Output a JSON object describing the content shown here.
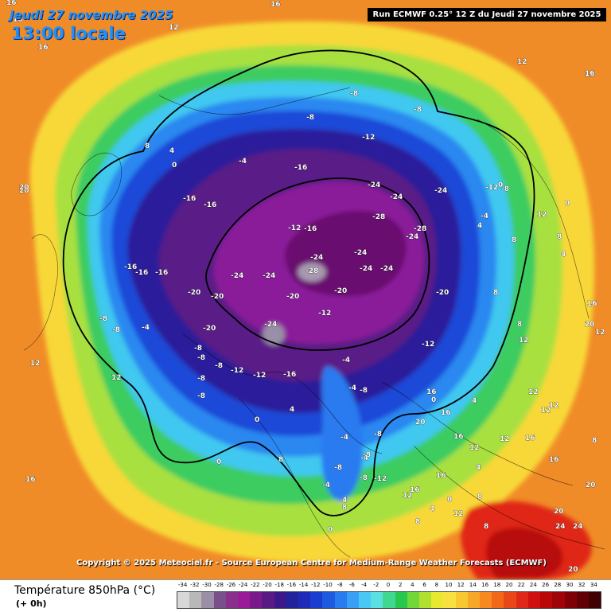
{
  "header": {
    "date_title": "Jeudi 27 novembre 2025",
    "time_title": "13:00 locale",
    "run_info": "Run ECMWF 0.25° 12 Z du Jeudi 27 novembre 2025"
  },
  "copyright": "Copyright © 2025 Meteociel.fr - Source European Centre for Medium-Range Weather Forecasts (ECMWF)",
  "legend": {
    "title": "Température 850hPa (°C)",
    "subtitle": "(+ 0h)",
    "scale_values": [
      "-34",
      "-32",
      "-30",
      "-28",
      "-26",
      "-24",
      "-22",
      "-20",
      "-18",
      "-16",
      "-14",
      "-12",
      "-10",
      "-8",
      "-6",
      "-4",
      "-2",
      "0",
      "2",
      "4",
      "6",
      "8",
      "10",
      "12",
      "14",
      "16",
      "18",
      "20",
      "22",
      "24",
      "26",
      "28",
      "30",
      "32",
      "34"
    ],
    "scale_colors": [
      "#d8d8d8",
      "#b8b8b8",
      "#9a8fa6",
      "#7a4f8a",
      "#8a2f8a",
      "#9a1a9a",
      "#7a1a8a",
      "#5a1a86",
      "#3a188a",
      "#22229a",
      "#1e2ab8",
      "#1a3cd0",
      "#1e5ae0",
      "#2a7af0",
      "#3aa0f5",
      "#4ac8f5",
      "#5ae0e0",
      "#40d890",
      "#28c850",
      "#70d838",
      "#b0e030",
      "#e8e830",
      "#f8e040",
      "#f8c830",
      "#f8a828",
      "#f88820",
      "#f06818",
      "#e84818",
      "#e02818",
      "#d01010",
      "#b80808",
      "#a00408",
      "#800008",
      "#600006",
      "#400004"
    ]
  },
  "map_labels": [
    {
      "t": "16",
      "c": "white"
    },
    {
      "t": "16",
      "c": "white"
    },
    {
      "t": "12",
      "c": "white"
    },
    {
      "t": "20",
      "c": "white"
    },
    {
      "t": "16",
      "c": "white"
    },
    {
      "t": "12",
      "c": "white"
    },
    {
      "t": "8",
      "c": "white"
    },
    {
      "t": "4",
      "c": "white"
    },
    {
      "t": "0",
      "c": "white"
    },
    {
      "t": "-4",
      "c": "white"
    },
    {
      "t": "-8",
      "c": "white"
    },
    {
      "t": "-8",
      "c": "white"
    },
    {
      "t": "-8",
      "c": "white"
    },
    {
      "t": "-12",
      "c": "white"
    },
    {
      "t": "-16",
      "c": "white"
    },
    {
      "t": "-16",
      "c": "white"
    },
    {
      "t": "-16",
      "c": "white"
    },
    {
      "t": "-24",
      "c": "white"
    },
    {
      "t": "-24",
      "c": "white"
    },
    {
      "t": "-24",
      "c": "white"
    },
    {
      "t": "-28",
      "c": "white"
    },
    {
      "t": "-28",
      "c": "white"
    },
    {
      "t": "-24",
      "c": "white"
    },
    {
      "t": "-24",
      "c": "white"
    },
    {
      "t": "-24",
      "c": "white"
    },
    {
      "t": "-20",
      "c": "white"
    },
    {
      "t": "-20",
      "c": "white"
    },
    {
      "t": "-20",
      "c": "white"
    },
    {
      "t": "-24",
      "c": "white"
    },
    {
      "t": "-24",
      "c": "white"
    },
    {
      "t": "-28",
      "c": "white"
    },
    {
      "t": "-24",
      "c": "white"
    },
    {
      "t": "-24",
      "c": "white"
    },
    {
      "t": "-20",
      "c": "white"
    },
    {
      "t": "-20",
      "c": "white"
    },
    {
      "t": "-24",
      "c": "white"
    },
    {
      "t": "-12",
      "c": "white"
    },
    {
      "t": "-12",
      "c": "white"
    },
    {
      "t": "-12",
      "c": "white"
    },
    {
      "t": "-12",
      "c": "white"
    },
    {
      "t": "-16",
      "c": "white"
    },
    {
      "t": "-16",
      "c": "white"
    },
    {
      "t": "-16",
      "c": "white"
    },
    {
      "t": "-16",
      "c": "white"
    },
    {
      "t": "-16",
      "c": "white"
    },
    {
      "t": "-20",
      "c": "white"
    },
    {
      "t": "-8",
      "c": "white"
    },
    {
      "t": "-8",
      "c": "white"
    },
    {
      "t": "-4",
      "c": "white"
    },
    {
      "t": "-4",
      "c": "white"
    },
    {
      "t": "-8",
      "c": "white"
    },
    {
      "t": "-12",
      "c": "white"
    },
    {
      "t": "-8",
      "c": "white"
    },
    {
      "t": "-8",
      "c": "white"
    },
    {
      "t": "-12",
      "c": "white"
    },
    {
      "t": "-8",
      "c": "white"
    },
    {
      "t": "-8",
      "c": "white"
    },
    {
      "t": "-4",
      "c": "white"
    },
    {
      "t": "-8",
      "c": "white"
    },
    {
      "t": "-8",
      "c": "white"
    },
    {
      "t": "-4",
      "c": "white"
    },
    {
      "t": "-8",
      "c": "white"
    },
    {
      "t": "0",
      "c": "white"
    },
    {
      "t": "0",
      "c": "white"
    },
    {
      "t": "4",
      "c": "white"
    },
    {
      "t": "8",
      "c": "white"
    },
    {
      "t": "12",
      "c": "white"
    },
    {
      "t": "12",
      "c": "white"
    },
    {
      "t": "16",
      "c": "white"
    },
    {
      "t": "16",
      "c": "white"
    },
    {
      "t": "16",
      "c": "white"
    },
    {
      "t": "20",
      "c": "white"
    },
    {
      "t": "20",
      "c": "white"
    },
    {
      "t": "24",
      "c": "white"
    },
    {
      "t": "24",
      "c": "white"
    },
    {
      "t": "20",
      "c": "white"
    },
    {
      "t": "16",
      "c": "white"
    },
    {
      "t": "12",
      "c": "white"
    },
    {
      "t": "12",
      "c": "white"
    },
    {
      "t": "8",
      "c": "white"
    },
    {
      "t": "8",
      "c": "white"
    },
    {
      "t": "4",
      "c": "white"
    },
    {
      "t": "0",
      "c": "white"
    },
    {
      "t": "16",
      "c": "white"
    },
    {
      "t": "12",
      "c": "white"
    },
    {
      "t": "8",
      "c": "white"
    },
    {
      "t": "4",
      "c": "white"
    },
    {
      "t": "0",
      "c": "white"
    },
    {
      "t": "-4",
      "c": "white"
    },
    {
      "t": "-8",
      "c": "white"
    },
    {
      "t": "20",
      "c": "white"
    },
    {
      "t": "16",
      "c": "white"
    },
    {
      "t": "12",
      "c": "white"
    },
    {
      "t": "8",
      "c": "white"
    },
    {
      "t": "12",
      "c": "white"
    },
    {
      "t": "16",
      "c": "white"
    },
    {
      "t": "20",
      "c": "white"
    },
    {
      "t": "16",
      "c": "white"
    },
    {
      "t": "12",
      "c": "white"
    },
    {
      "t": "8",
      "c": "white"
    },
    {
      "t": "4",
      "c": "white"
    },
    {
      "t": "0",
      "c": "white"
    },
    {
      "t": "-4",
      "c": "white"
    },
    {
      "t": "-8",
      "c": "white"
    },
    {
      "t": "-12",
      "c": "white"
    },
    {
      "t": "-8",
      "c": "white"
    },
    {
      "t": "-4",
      "c": "white"
    },
    {
      "t": "0",
      "c": "white"
    },
    {
      "t": "4",
      "c": "white"
    },
    {
      "t": "8",
      "c": "white"
    },
    {
      "t": "12",
      "c": "white"
    },
    {
      "t": "16",
      "c": "white"
    },
    {
      "t": "16",
      "c": "white"
    },
    {
      "t": "12",
      "c": "white"
    },
    {
      "t": "8",
      "c": "white"
    },
    {
      "t": "4",
      "c": "white"
    },
    {
      "t": "0",
      "c": "white"
    },
    {
      "t": "4",
      "c": "white"
    },
    {
      "t": "8",
      "c": "white"
    },
    {
      "t": "12",
      "c": "white"
    },
    {
      "t": "16",
      "c": "white"
    },
    {
      "t": "20",
      "c": "white"
    },
    {
      "t": "16",
      "c": "white"
    },
    {
      "t": "12",
      "c": "white"
    },
    {
      "t": "8",
      "c": "white"
    }
  ]
}
